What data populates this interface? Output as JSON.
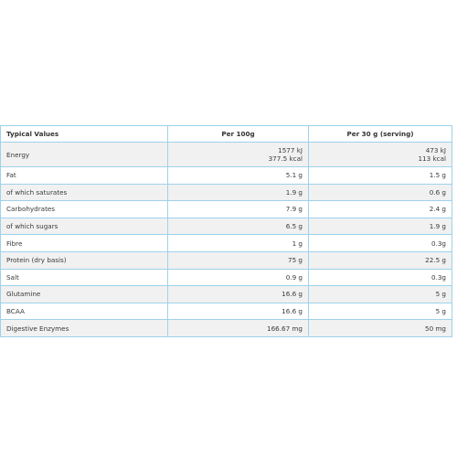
{
  "headers": {
    "col1": "Typical Values",
    "col2": "Per 100g",
    "col3": "Per 30 g (serving)"
  },
  "rows": [
    {
      "name": "Energy",
      "per100": [
        "1577 kJ",
        "377.5 kcal"
      ],
      "perServing": [
        "473 kJ",
        "113 kcal"
      ]
    },
    {
      "name": "Fat",
      "per100": [
        "5.1 g"
      ],
      "perServing": [
        "1.5 g"
      ]
    },
    {
      "name": "of which saturates",
      "per100": [
        "1.9 g"
      ],
      "perServing": [
        "0.6 g"
      ]
    },
    {
      "name": "Carbohydrates",
      "per100": [
        "7.9 g"
      ],
      "perServing": [
        "2.4 g"
      ]
    },
    {
      "name": "of which sugars",
      "per100": [
        "6.5 g"
      ],
      "perServing": [
        "1.9 g"
      ]
    },
    {
      "name": "Fibre",
      "per100": [
        "1 g"
      ],
      "perServing": [
        "0.3g"
      ]
    },
    {
      "name": "Protein (dry basis)",
      "per100": [
        "75 g"
      ],
      "perServing": [
        "22.5 g"
      ]
    },
    {
      "name": "Salt",
      "per100": [
        "0.9 g"
      ],
      "perServing": [
        "0.3g"
      ]
    },
    {
      "name": "Glutamine",
      "per100": [
        "16.6 g"
      ],
      "perServing": [
        "5 g"
      ]
    },
    {
      "name": "BCAA",
      "per100": [
        "16.6 g"
      ],
      "perServing": [
        "5 g"
      ]
    },
    {
      "name": "Digestive Enzymes",
      "per100": [
        "166.67 mg"
      ],
      "perServing": [
        "50 mg"
      ]
    }
  ]
}
